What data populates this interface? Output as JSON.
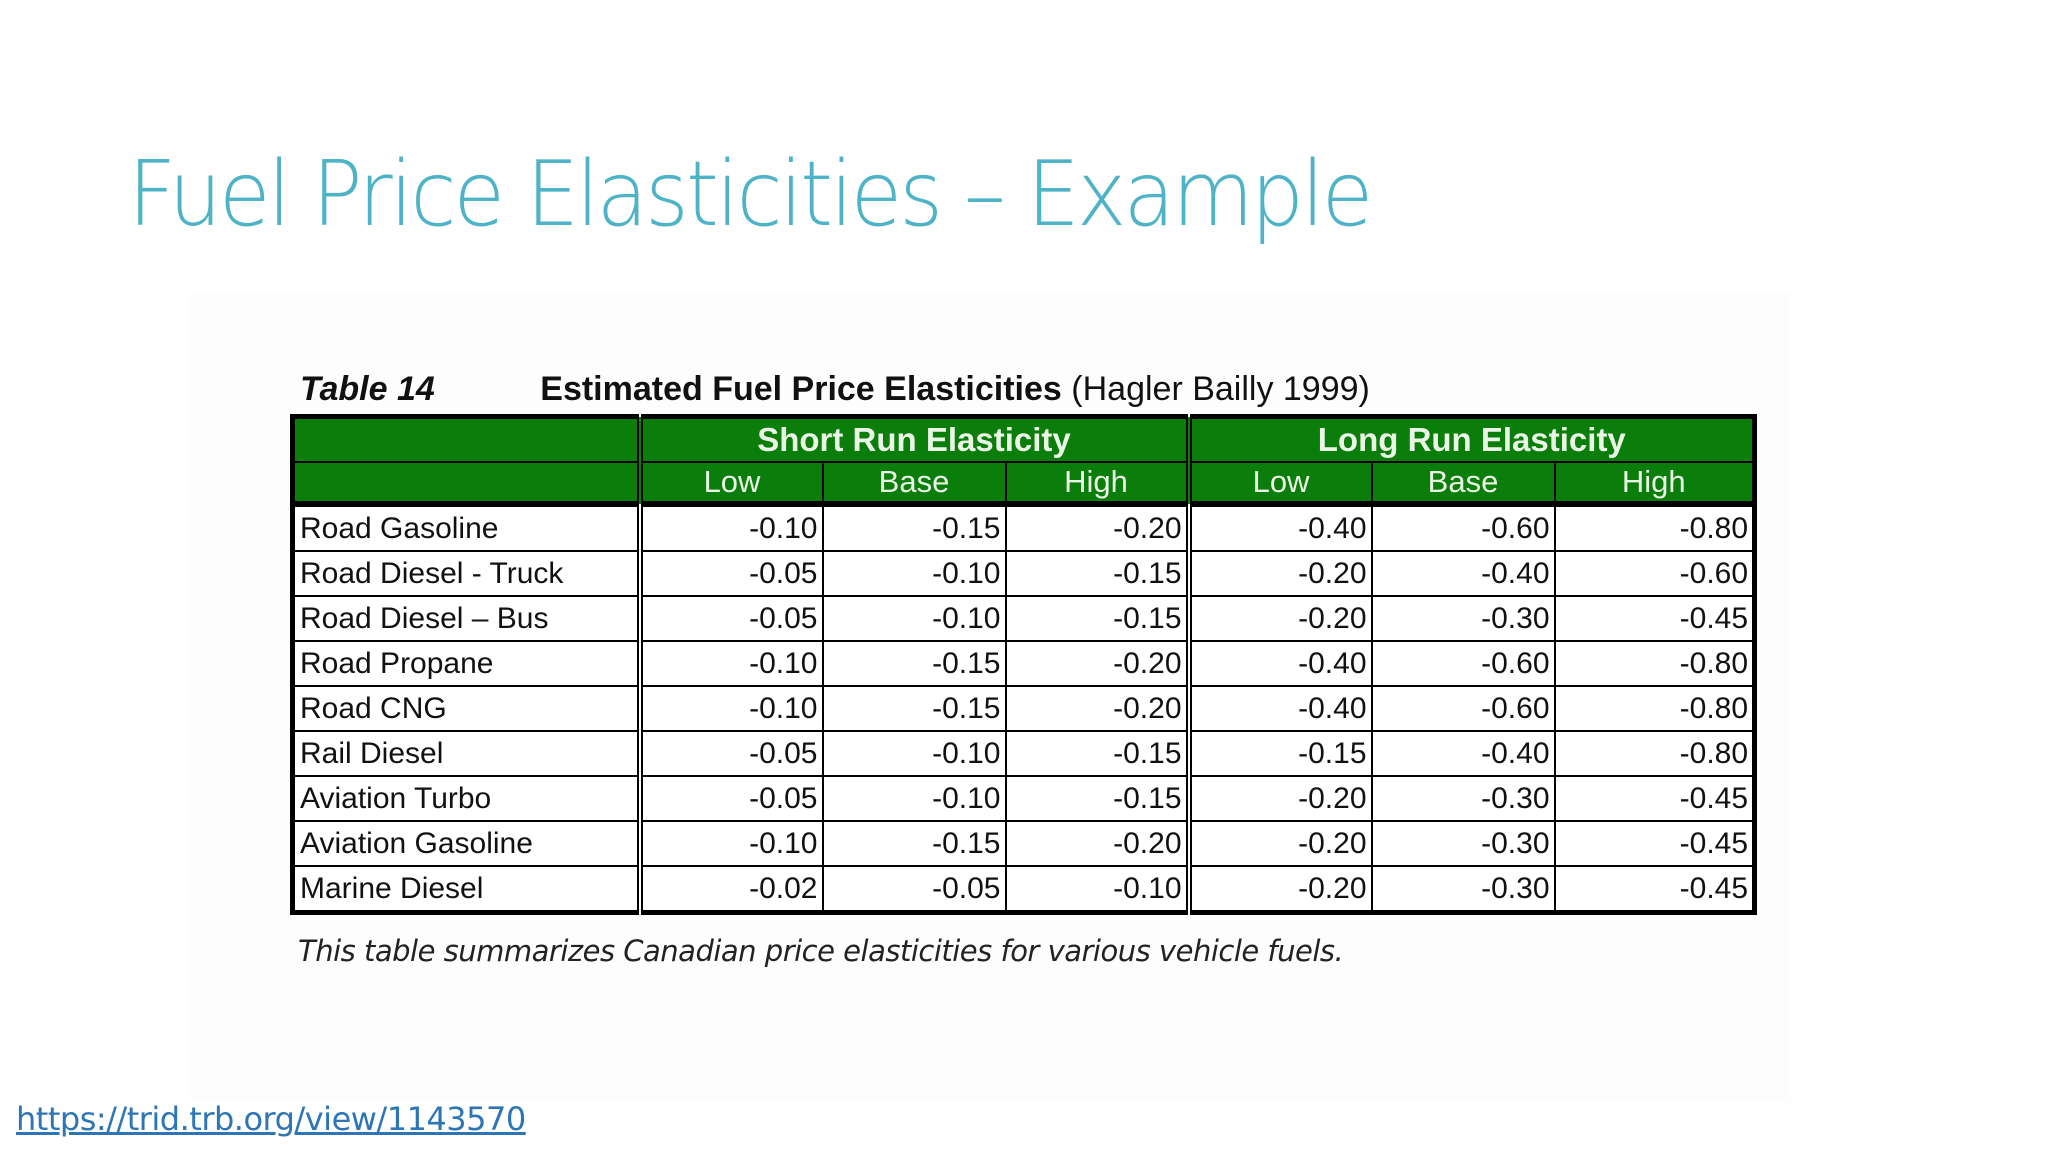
{
  "slide": {
    "title": "Fuel Price Elasticities – Example",
    "title_color": "#4fb3c8"
  },
  "figure": {
    "table_number": "Table 14",
    "table_title": "Estimated Fuel Price Elasticities",
    "table_source": "(Hagler Bailly 1999)",
    "header_color": "#0a7d0a",
    "groups": [
      {
        "label": "Short Run Elasticity"
      },
      {
        "label": "Long Run Elasticity"
      }
    ],
    "subheaders": [
      "Low",
      "Base",
      "High",
      "Low",
      "Base",
      "High"
    ],
    "rows": [
      {
        "fuel": "Road Gasoline",
        "values": [
          "-0.10",
          "-0.15",
          "-0.20",
          "-0.40",
          "-0.60",
          "-0.80"
        ]
      },
      {
        "fuel": "Road Diesel - Truck",
        "values": [
          "-0.05",
          "-0.10",
          "-0.15",
          "-0.20",
          "-0.40",
          "-0.60"
        ]
      },
      {
        "fuel": "Road Diesel – Bus",
        "values": [
          "-0.05",
          "-0.10",
          "-0.15",
          "-0.20",
          "-0.30",
          "-0.45"
        ]
      },
      {
        "fuel": "Road Propane",
        "values": [
          "-0.10",
          "-0.15",
          "-0.20",
          "-0.40",
          "-0.60",
          "-0.80"
        ]
      },
      {
        "fuel": "Road CNG",
        "values": [
          "-0.10",
          "-0.15",
          "-0.20",
          "-0.40",
          "-0.60",
          "-0.80"
        ]
      },
      {
        "fuel": "Rail Diesel",
        "values": [
          "-0.05",
          "-0.10",
          "-0.15",
          "-0.15",
          "-0.40",
          "-0.80"
        ]
      },
      {
        "fuel": "Aviation Turbo",
        "values": [
          "-0.05",
          "-0.10",
          "-0.15",
          "-0.20",
          "-0.30",
          "-0.45"
        ]
      },
      {
        "fuel": "Aviation Gasoline",
        "values": [
          "-0.10",
          "-0.15",
          "-0.20",
          "-0.20",
          "-0.30",
          "-0.45"
        ]
      },
      {
        "fuel": "Marine Diesel",
        "values": [
          "-0.02",
          "-0.05",
          "-0.10",
          "-0.20",
          "-0.30",
          "-0.45"
        ]
      }
    ],
    "footnote": "This table summarizes Canadian price elasticities for various vehicle fuels."
  },
  "source_link": {
    "text": "https://trid.trb.org/view/1143570",
    "color": "#2e75b6"
  }
}
